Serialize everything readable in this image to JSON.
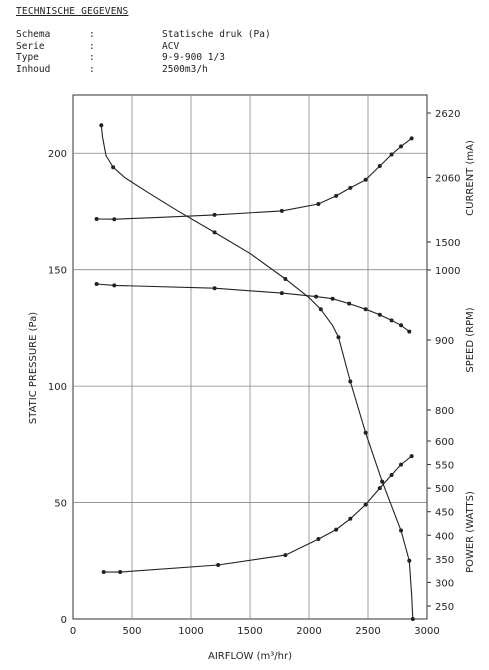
{
  "spec": {
    "title": "TECHNISCHE GEGEVENS",
    "rows": [
      {
        "key": "Schema",
        "sep": ":",
        "value": "Statische druk (Pa)"
      },
      {
        "key": "Serie",
        "sep": ":",
        "value": "ACV"
      },
      {
        "key": "Type",
        "sep": ":",
        "value": "9-9-900 1/3"
      },
      {
        "key": "Inhoud",
        "sep": ":",
        "value": "2500m3/h"
      }
    ]
  },
  "chart_data": {
    "type": "line",
    "xlabel": "AIRFLOW (m³/hr)",
    "xlim": [
      0,
      3000
    ],
    "xticks": [
      "0",
      "500",
      "1000",
      "1500",
      "2000",
      "2500",
      "3000"
    ],
    "grid": true,
    "left_axis": {
      "label": "STATIC PRESSURE (Pa)",
      "lim": [
        0,
        225
      ],
      "ticks": [
        "0",
        "50",
        "100",
        "150",
        "200"
      ]
    },
    "right_axes": [
      {
        "label": "CURRENT (mA)",
        "lim": [
          1500,
          2660
        ],
        "ticks": [
          "1500",
          "2060",
          "2620"
        ],
        "tick_values": [
          1500,
          2060,
          2620
        ]
      },
      {
        "label": "SPEED (RPM)",
        "lim": [
          780,
          1000
        ],
        "ticks": [
          "1000",
          "900",
          "800"
        ],
        "tick_values": [
          1000,
          900,
          800
        ]
      },
      {
        "label": "POWER (WATTS)",
        "lim": [
          230,
          600
        ],
        "ticks": [
          "600",
          "550",
          "500",
          "450",
          "400",
          "350",
          "300",
          "250"
        ],
        "tick_values": [
          600,
          550,
          500,
          450,
          400,
          350,
          300,
          250
        ]
      }
    ],
    "series": [
      {
        "axis": "left",
        "x": [
          240,
          250,
          280,
          340,
          440,
          640,
          880,
          1200,
          1500,
          1800,
          2000,
          2100,
          2200,
          2250,
          2350,
          2480,
          2620,
          2780,
          2850,
          2870,
          2880
        ],
        "values": [
          212,
          207,
          199,
          194,
          189.5,
          183,
          175.5,
          166,
          157,
          146,
          138,
          133,
          126,
          121,
          102,
          80,
          59,
          38,
          25,
          10,
          0
        ],
        "markers_at": [
          0,
          3,
          7,
          9,
          11,
          13,
          14,
          15,
          16,
          17,
          18,
          20
        ]
      },
      {
        "axis": "right0",
        "x": [
          200,
          350,
          700,
          1200,
          1770,
          2080,
          2230,
          2350,
          2480,
          2600,
          2700,
          2780,
          2870
        ],
        "values": [
          1700,
          1698,
          1712,
          1735,
          1770,
          1830,
          1900,
          1970,
          2040,
          2160,
          2260,
          2330,
          2400
        ],
        "markers_at": [
          0,
          1,
          3,
          4,
          5,
          6,
          7,
          8,
          9,
          10,
          11,
          12
        ]
      },
      {
        "axis": "right1",
        "x": [
          200,
          350,
          1200,
          1770,
          2060,
          2200,
          2340,
          2480,
          2600,
          2700,
          2780,
          2850
        ],
        "values": [
          980,
          978,
          974,
          967,
          962,
          959,
          952,
          944,
          936,
          928,
          921,
          912
        ],
        "markers_at": [
          0,
          1,
          2,
          3,
          4,
          5,
          6,
          7,
          8,
          9,
          10,
          11
        ]
      },
      {
        "axis": "right2",
        "x": [
          260,
          400,
          1230,
          1800,
          2080,
          2230,
          2350,
          2480,
          2600,
          2700,
          2780,
          2870
        ],
        "values": [
          322,
          322,
          337,
          358,
          392,
          412,
          435,
          465,
          500,
          528,
          550,
          568
        ],
        "markers_at": [
          0,
          1,
          2,
          3,
          4,
          5,
          6,
          7,
          8,
          9,
          10,
          11
        ]
      }
    ]
  }
}
